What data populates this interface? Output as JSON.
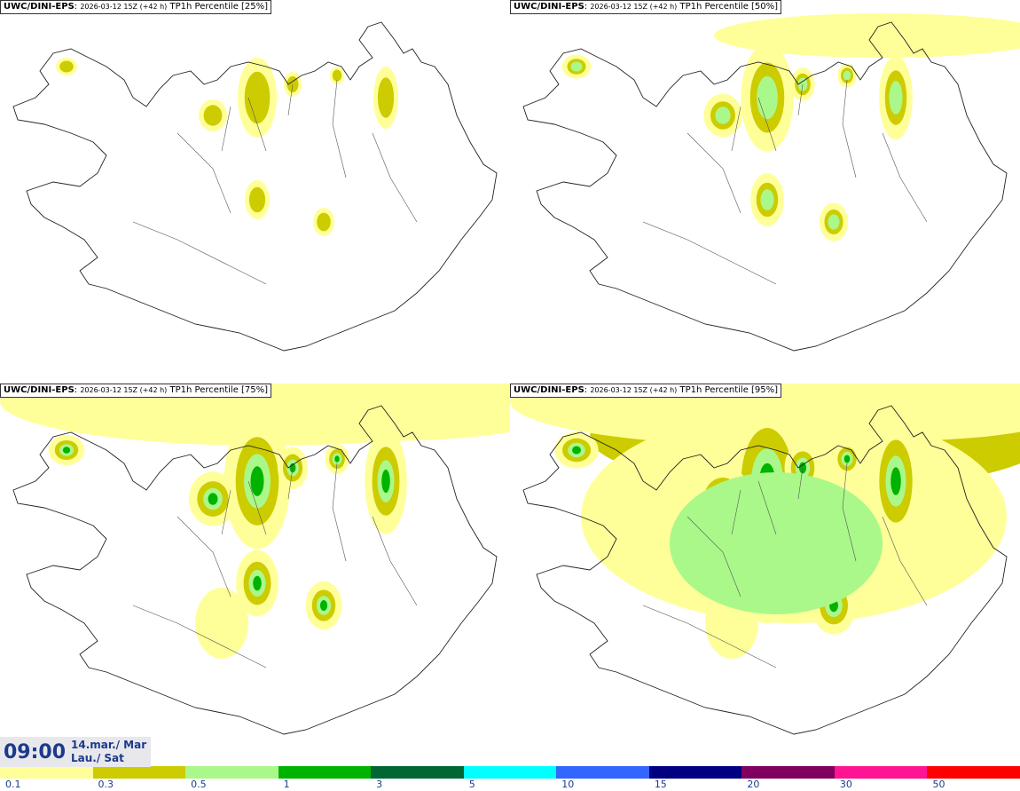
{
  "panels": [
    {
      "source": "UWC/DINI-EPS",
      "run": "2026-03-12 15Z (+42 h)",
      "field": "TP1h Percentile [25%]",
      "intensity": 1
    },
    {
      "source": "UWC/DINI-EPS",
      "run": "2026-03-12 15Z (+42 h)",
      "field": "TP1h Percentile [50%]",
      "intensity": 2
    },
    {
      "source": "UWC/DINI-EPS",
      "run": "2026-03-12 15Z (+42 h)",
      "field": "TP1h Percentile [75%]",
      "intensity": 3
    },
    {
      "source": "UWC/DINI-EPS",
      "run": "2026-03-12 15Z (+42 h)",
      "field": "TP1h Percentile [95%]",
      "intensity": 4
    }
  ],
  "valid_time": {
    "time": "09:00",
    "date_line1": "14.mar./ Mar",
    "date_line2": "Lau./ Sat"
  },
  "legend": {
    "thresholds": [
      "0.1",
      "0.3",
      "0.5",
      "1",
      "3",
      "5",
      "10",
      "15",
      "20",
      "30",
      "50"
    ],
    "colors": [
      "#ffff99",
      "#cccc00",
      "#aaf88a",
      "#00b300",
      "#006633",
      "#00ffff",
      "#3366ff",
      "#000080",
      "#800060",
      "#ff1493",
      "#ff0000"
    ]
  }
}
